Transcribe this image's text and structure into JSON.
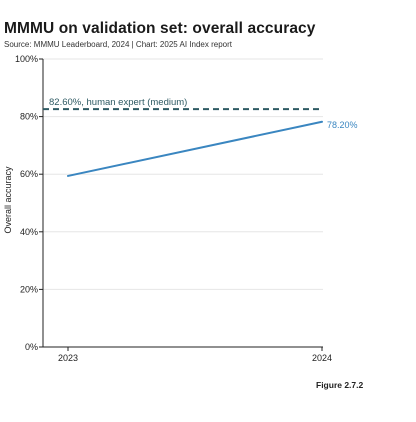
{
  "page": {
    "title": "MMMU on validation set: overall accuracy",
    "subtitle": "Source: MMMU Leaderboard, 2024 | Chart: 2025 AI Index report",
    "figure_caption": "Figure 2.7.2"
  },
  "colors": {
    "series_line": "#3a86c0",
    "reference_line": "#2e5a63",
    "gridline": "#e6e6e6",
    "axis": "#222222"
  },
  "chart_data": {
    "type": "line",
    "title": "MMMU on validation set: overall accuracy",
    "xlabel": "",
    "ylabel": "Overall accuracy",
    "x": [
      "2023",
      "2024"
    ],
    "ylim": [
      0,
      100
    ],
    "yticks": [
      "0%",
      "20%",
      "40%",
      "60%",
      "80%",
      "100%"
    ],
    "ytick_values": [
      0,
      20,
      40,
      60,
      80,
      100
    ],
    "grid": true,
    "series": [
      {
        "values": [
          59.4,
          78.2
        ],
        "end_label": "78.20%"
      }
    ],
    "reference_lines": [
      {
        "value": 82.6,
        "label": "82.60%, human expert (medium)",
        "style": "dashed"
      }
    ]
  }
}
